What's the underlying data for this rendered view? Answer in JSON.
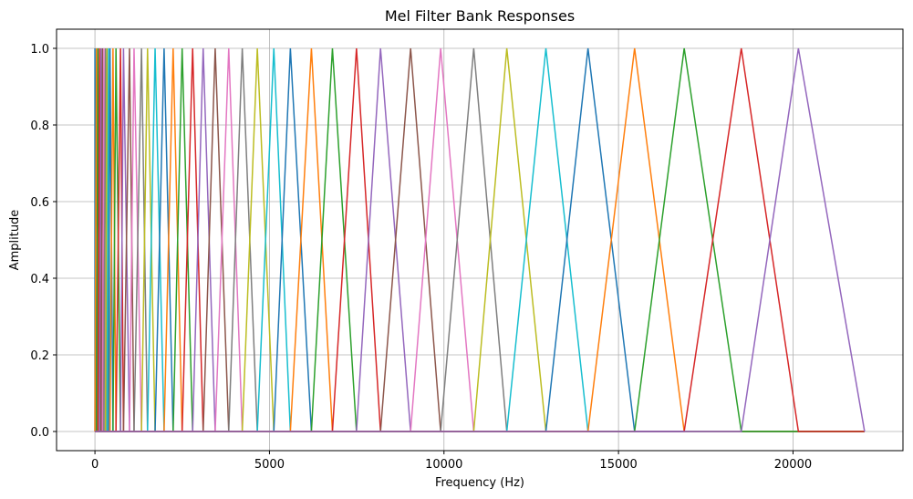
{
  "chart_data": {
    "type": "line",
    "title": "Mel Filter Bank Responses",
    "xlabel": "Frequency (Hz)",
    "ylabel": "Amplitude",
    "xlim": [
      -1100,
      23150
    ],
    "ylim": [
      -0.05,
      1.05
    ],
    "xticks": [
      0,
      5000,
      10000,
      15000,
      20000
    ],
    "xtick_labels": [
      "0",
      "5000",
      "10000",
      "15000",
      "20000"
    ],
    "yticks": [
      0.0,
      0.2,
      0.4,
      0.6,
      0.8,
      1.0
    ],
    "ytick_labels": [
      "0.0",
      "0.2",
      "0.4",
      "0.6",
      "0.8",
      "1.0"
    ],
    "grid": true,
    "legend": "none",
    "series_description": "triangular mel filters; each series is [start, peak, end] in Hz with amplitude 0 -> 1 -> 0",
    "filter_edges_hz": [
      0,
      0,
      44,
      86,
      130,
      172,
      216,
      258,
      302,
      345,
      388,
      431,
      517,
      603,
      732,
      818,
      990,
      1120,
      1334,
      1507,
      1723,
      1981,
      2240,
      2498,
      2799,
      3101,
      3445,
      3833,
      4221,
      4652,
      5125,
      5599,
      6202,
      6804,
      7493,
      8182,
      9044,
      9905,
      10852,
      11800,
      12920,
      14126,
      15461,
      16882,
      18518,
      20154,
      22050
    ],
    "colors": [
      "#1f77b4",
      "#ff7f0e",
      "#2ca02c",
      "#d62728",
      "#9467bd",
      "#8c564b",
      "#e377c2",
      "#7f7f7f",
      "#bcbd22",
      "#17becf"
    ]
  }
}
